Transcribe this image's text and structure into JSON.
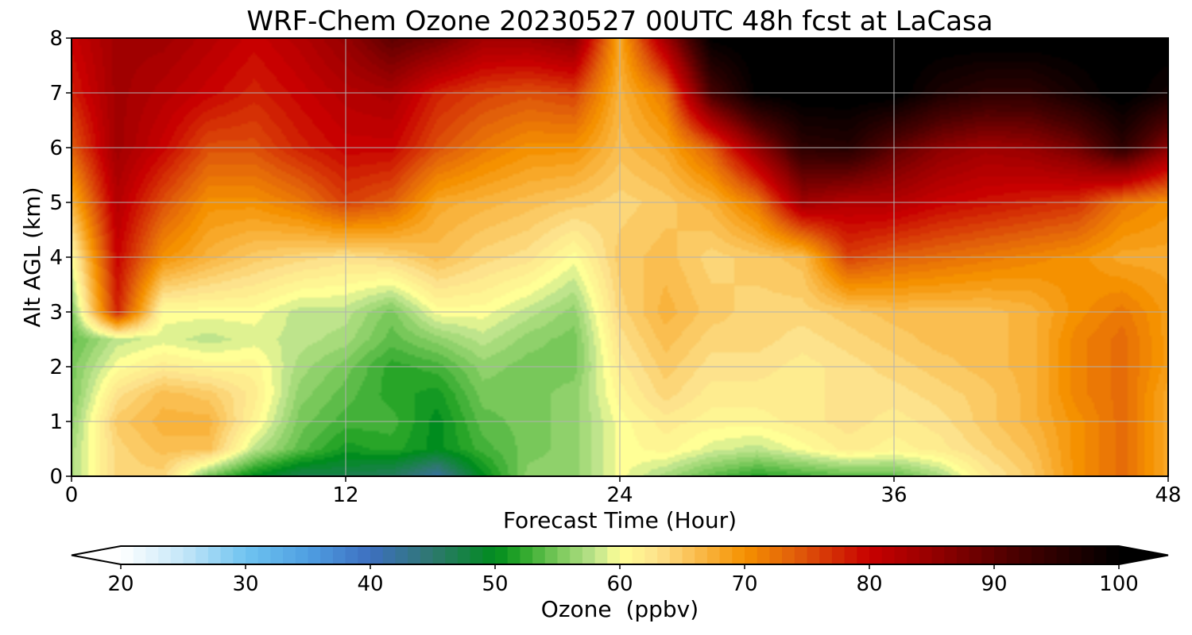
{
  "chart_data": {
    "type": "heatmap",
    "title": "WRF-Chem Ozone  20230527 00UTC 48h fcst at LaCasa",
    "xlabel": "Forecast Time (Hour)",
    "ylabel": "Alt AGL (km)",
    "xlim": [
      0,
      48
    ],
    "ylim": [
      0,
      8
    ],
    "x_ticks": [
      0,
      12,
      24,
      36,
      48
    ],
    "y_ticks": [
      0,
      1,
      2,
      3,
      4,
      5,
      6,
      7,
      8
    ],
    "grid": true,
    "colorbar": {
      "label": "Ozone  (ppbv)",
      "min": 20,
      "max": 100,
      "ticks": [
        20,
        30,
        40,
        50,
        60,
        70,
        80,
        90,
        100
      ],
      "extend": "both",
      "orientation": "horizontal",
      "placement": "bottom"
    },
    "x_hours": [
      0,
      2,
      4,
      6,
      8,
      10,
      12,
      14,
      16,
      18,
      20,
      22,
      24,
      26,
      28,
      30,
      32,
      34,
      36,
      38,
      40,
      42,
      44,
      46,
      48
    ],
    "altitudes_km": [
      0,
      0.5,
      1,
      1.5,
      2,
      2.5,
      3,
      4,
      5,
      6,
      7,
      8
    ],
    "ozone_ppbv": [
      [
        57,
        64,
        64,
        55,
        50,
        47,
        47,
        46,
        42,
        50,
        56,
        56,
        60,
        57,
        54,
        52,
        53,
        54,
        54,
        57,
        62,
        65,
        70,
        73,
        68
      ],
      [
        57,
        64,
        66,
        66,
        58,
        54,
        51,
        52,
        50,
        53,
        55,
        56,
        60,
        61,
        59,
        58,
        60,
        62,
        61,
        62,
        64,
        66,
        70,
        73,
        68
      ],
      [
        56,
        65,
        67,
        67,
        61,
        55,
        53,
        53,
        50,
        54,
        55,
        56,
        60,
        62,
        61,
        61,
        62,
        63,
        62,
        63,
        65,
        67,
        70,
        73,
        68
      ],
      [
        55,
        63,
        66,
        65,
        62,
        56,
        54,
        52,
        51,
        55,
        55,
        56,
        61,
        64,
        62,
        62,
        62,
        63,
        63,
        64,
        65,
        67,
        71,
        73,
        68
      ],
      [
        55,
        60,
        62,
        61,
        61,
        57,
        55,
        52,
        53,
        56,
        55,
        55,
        62,
        65,
        63,
        63,
        62,
        63,
        64,
        65,
        66,
        67,
        71,
        73,
        69
      ],
      [
        54,
        58,
        59,
        58,
        59,
        58,
        57,
        54,
        56,
        58,
        56,
        55,
        63,
        66,
        64,
        64,
        63,
        64,
        65,
        66,
        66,
        67,
        71,
        73,
        69
      ],
      [
        55,
        78,
        60,
        60,
        60,
        58,
        58,
        55,
        60,
        60,
        58,
        56,
        64,
        67,
        65,
        64,
        64,
        65,
        66,
        66,
        66,
        67,
        70,
        72,
        69
      ],
      [
        60,
        80,
        70,
        67,
        65,
        64,
        63,
        64,
        66,
        64,
        63,
        60,
        65,
        66,
        64,
        65,
        66,
        76,
        74,
        73,
        72,
        71,
        70,
        68,
        68
      ],
      [
        67,
        82,
        75,
        70,
        70,
        72,
        76,
        74,
        68,
        67,
        66,
        65,
        64,
        65,
        67,
        72,
        84,
        82,
        82,
        80,
        79,
        78,
        77,
        72,
        70
      ],
      [
        74,
        84,
        80,
        75,
        75,
        78,
        80,
        80,
        75,
        72,
        70,
        70,
        66,
        68,
        74,
        85,
        95,
        96,
        90,
        86,
        84,
        85,
        88,
        95,
        86
      ],
      [
        78,
        84,
        82,
        80,
        78,
        80,
        82,
        83,
        78,
        76,
        75,
        76,
        67,
        72,
        92,
        100,
        101,
        101,
        101,
        97,
        95,
        95,
        98,
        101,
        98
      ],
      [
        80,
        84,
        84,
        82,
        80,
        82,
        85,
        90,
        88,
        84,
        84,
        86,
        68,
        84,
        100,
        101,
        101,
        101,
        101,
        101,
        101,
        101,
        101,
        101,
        101
      ]
    ]
  }
}
